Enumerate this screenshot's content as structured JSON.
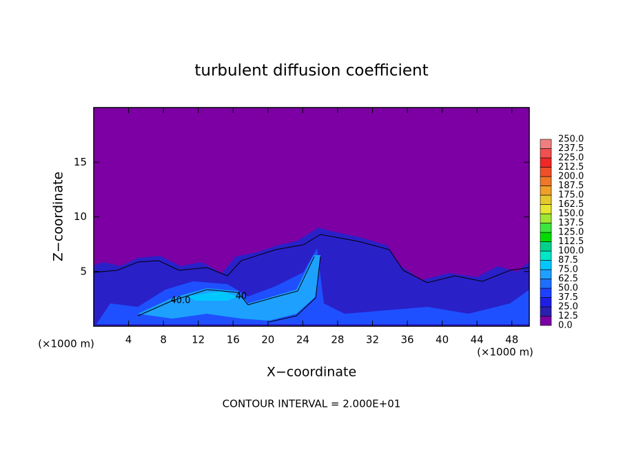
{
  "chart_data": {
    "type": "contour",
    "title": "turbulent diffusion coefficient",
    "xlabel": "X−coordinate",
    "ylabel": "Z−coordinate",
    "x_unit_labels": [
      "(×1000 m)",
      "(×1000 m)"
    ],
    "footer": "CONTOUR INTERVAL = 2.000E+01",
    "contour_labels": [
      "40.0",
      "40"
    ],
    "xlim": [
      0,
      50
    ],
    "xticks": [
      4,
      8,
      12,
      16,
      20,
      24,
      28,
      32,
      36,
      40,
      44,
      48
    ],
    "ylim": [
      0,
      20
    ],
    "yticks": [
      5,
      10,
      15
    ],
    "colorbar": {
      "levels": [
        {
          "value": 0,
          "label": "0.0"
        },
        {
          "value": 12.5,
          "label": "12.5"
        },
        {
          "value": 25,
          "label": "25.0"
        },
        {
          "value": 37.5,
          "label": "37.5"
        },
        {
          "value": 50,
          "label": "50.0"
        },
        {
          "value": 62.5,
          "label": "62.5"
        },
        {
          "value": 75,
          "label": "75.0"
        },
        {
          "value": 87.5,
          "label": "87.5"
        },
        {
          "value": 100,
          "label": "100.0"
        },
        {
          "value": 112.5,
          "label": "112.5"
        },
        {
          "value": 125,
          "label": "125.0"
        },
        {
          "value": 137.5,
          "label": "137.5"
        },
        {
          "value": 150,
          "label": "150.0"
        },
        {
          "value": 162.5,
          "label": "162.5"
        },
        {
          "value": 175,
          "label": "175.0"
        },
        {
          "value": 187.5,
          "label": "187.5"
        },
        {
          "value": 200,
          "label": "200.0"
        },
        {
          "value": 212.5,
          "label": "212.5"
        },
        {
          "value": 225,
          "label": "225.0"
        },
        {
          "value": 237.5,
          "label": "237.5"
        },
        {
          "value": 250,
          "label": "250.0"
        }
      ],
      "colors": [
        "#7c00a4",
        "#2a20b0",
        "#1e1ee6",
        "#1e40ff",
        "#1e6eff",
        "#1ea0ff",
        "#00c8ff",
        "#00e6c8",
        "#00d28c",
        "#00dc00",
        "#3ce63c",
        "#a0e632",
        "#e6e632",
        "#e6c82d",
        "#f0a028",
        "#f07828",
        "#f05028",
        "#f02828",
        "#f05050",
        "#f08080"
      ]
    }
  }
}
